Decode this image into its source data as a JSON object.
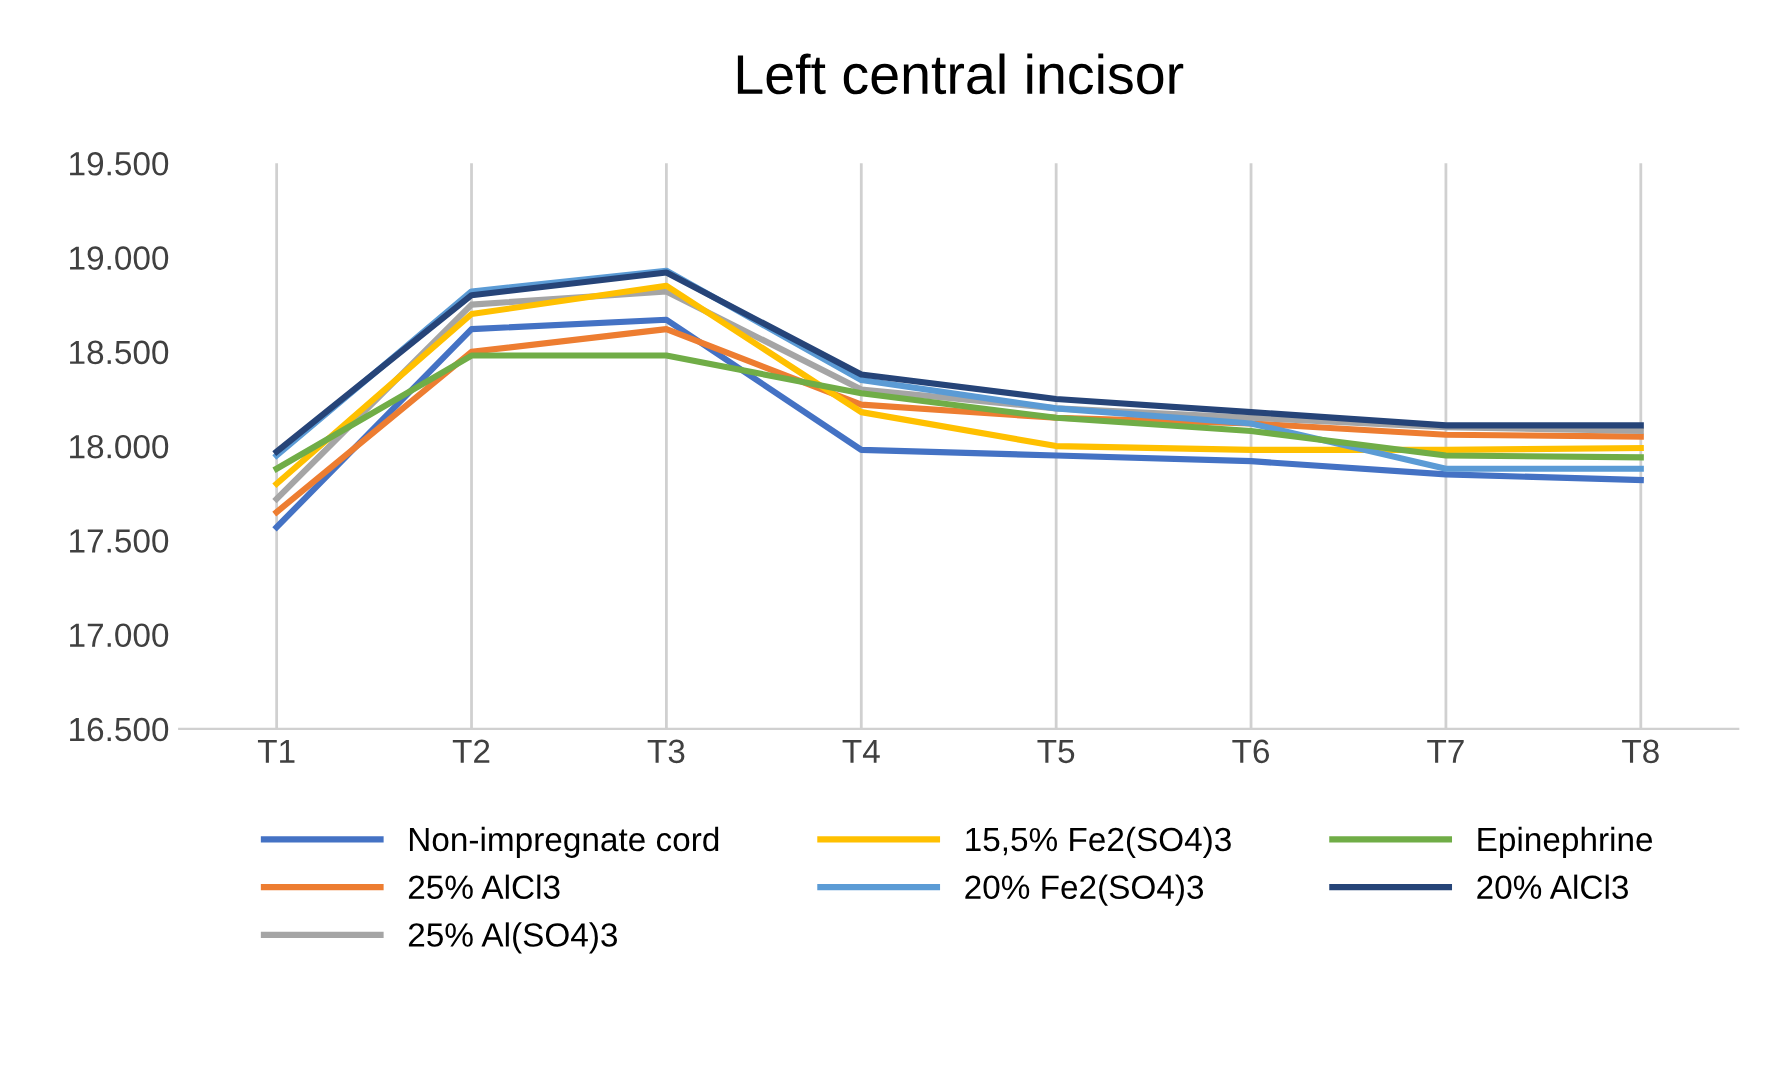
{
  "chart_data": {
    "type": "line",
    "title": "Left central incisor",
    "categories": [
      "T1",
      "T2",
      "T3",
      "T4",
      "T5",
      "T6",
      "T7",
      "T8"
    ],
    "series": [
      {
        "name": "Non-impregnate cord",
        "color": "#4472c4",
        "values": [
          17.57,
          18.62,
          18.67,
          17.98,
          17.95,
          17.92,
          17.85,
          17.82
        ]
      },
      {
        "name": "25% AlCl3",
        "color": "#ed7d31",
        "values": [
          17.65,
          18.5,
          18.62,
          18.22,
          18.15,
          18.12,
          18.06,
          18.05
        ]
      },
      {
        "name": "25% Al(SO4)3",
        "color": "#a5a5a5",
        "values": [
          17.72,
          18.75,
          18.82,
          18.3,
          18.2,
          18.15,
          18.1,
          18.08
        ]
      },
      {
        "name": "15,5% Fe2(SO4)3",
        "color": "#ffc000",
        "values": [
          17.8,
          18.7,
          18.85,
          18.18,
          18.0,
          17.98,
          17.98,
          17.99
        ]
      },
      {
        "name": "20% Fe2(SO4)3",
        "color": "#5b9bd5",
        "values": [
          17.95,
          18.82,
          18.93,
          18.35,
          18.2,
          18.12,
          17.88,
          17.88
        ]
      },
      {
        "name": "Epinephrine",
        "color": "#70ad47",
        "values": [
          17.88,
          18.48,
          18.48,
          18.28,
          18.15,
          18.08,
          17.95,
          17.94
        ]
      },
      {
        "name": "20% AlCl3",
        "color": "#264478",
        "values": [
          17.97,
          18.8,
          18.92,
          18.38,
          18.25,
          18.18,
          18.11,
          18.11
        ]
      }
    ],
    "ylim": [
      16.5,
      19.5
    ],
    "yticks": [
      {
        "value": 16.5,
        "label": "16.500"
      },
      {
        "value": 17.0,
        "label": "17.000"
      },
      {
        "value": 17.5,
        "label": "17.500"
      },
      {
        "value": 18.0,
        "label": "18.000"
      },
      {
        "value": 18.5,
        "label": "18.500"
      },
      {
        "value": 19.0,
        "label": "19.000"
      },
      {
        "value": 19.5,
        "label": "19.500"
      }
    ],
    "grid": "x",
    "legend": "bottom",
    "marker": "none",
    "line_style": "solid"
  }
}
